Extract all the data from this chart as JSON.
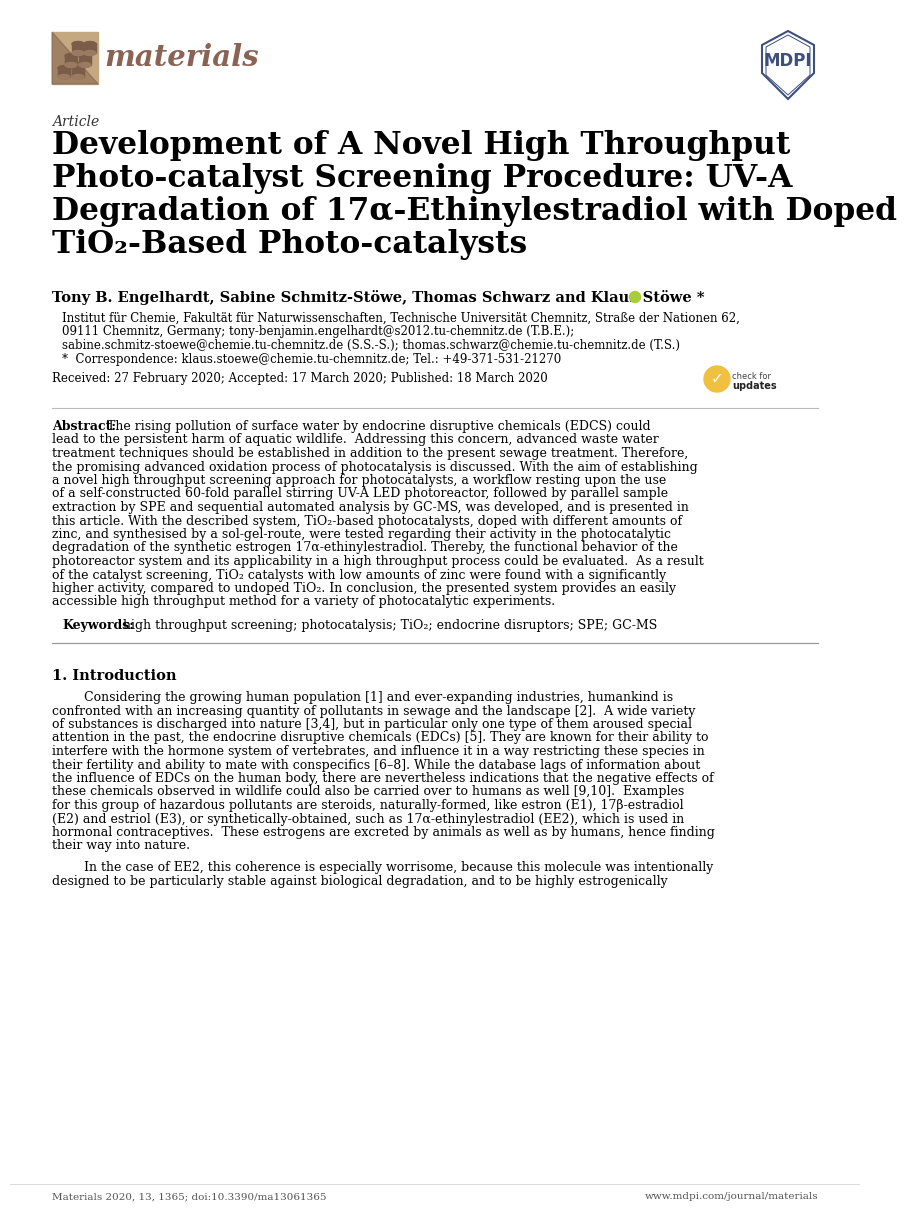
{
  "bg_color": "#ffffff",
  "article_label": "Article",
  "title_line1": "Development of A Novel High Throughput",
  "title_line2": "Photo-catalyst Screening Procedure: UV-A",
  "title_line3": "Degradation of 17α-Ethinylestradiol with Doped",
  "title_line4": "TiO₂-Based Photo-catalysts",
  "authors": "Tony B. Engelhardt, Sabine Schmitz-Stöwe, Thomas Schwarz and Klaus Stöwe *",
  "affil1": "Institut für Chemie, Fakultät für Naturwissenschaften, Technische Universität Chemnitz, Straße der Nationen 62,",
  "affil2": "09111 Chemnitz, Germany; tony-benjamin.engelhardt@s2012.tu-chemnitz.de (T.B.E.);",
  "affil3": "sabine.schmitz-stoewe@chemie.tu-chemnitz.de (S.S.-S.); thomas.schwarz@chemie.tu-chemnitz.de (T.S.)",
  "affil4": "*  Correspondence: klaus.stoewe@chemie.tu-chemnitz.de; Tel.: +49-371-531-21270",
  "dates": "Received: 27 February 2020; Accepted: 17 March 2020; Published: 18 March 2020",
  "abstract_bold": "Abstract:",
  "abstract_lines": [
    "Abstract: The rising pollution of surface water by endocrine disruptive chemicals (EDCS) could",
    "lead to the persistent harm of aquatic wildlife.  Addressing this concern, advanced waste water",
    "treatment techniques should be established in addition to the present sewage treatment. Therefore,",
    "the promising advanced oxidation process of photocatalysis is discussed. With the aim of establishing",
    "a novel high throughput screening approach for photocatalysts, a workflow resting upon the use",
    "of a self-constructed 60-fold parallel stirring UV-A LED photoreactor, followed by parallel sample",
    "extraction by SPE and sequential automated analysis by GC-MS, was developed, and is presented in",
    "this article. With the described system, TiO₂-based photocatalysts, doped with different amounts of",
    "zinc, and synthesised by a sol-gel-route, were tested regarding their activity in the photocatalytic",
    "degradation of the synthetic estrogen 17α-ethinylestradiol. Thereby, the functional behavior of the",
    "photoreactor system and its applicability in a high throughput process could be evaluated.  As a result",
    "of the catalyst screening, TiO₂ catalysts with low amounts of zinc were found with a significantly",
    "higher activity, compared to undoped TiO₂. In conclusion, the presented system provides an easily",
    "accessible high throughput method for a variety of photocatalytic experiments."
  ],
  "keywords_bold": "Keywords:",
  "keywords_text": " high throughput screening; photocatalysis; TiO₂; endocrine disruptors; SPE; GC-MS",
  "section1_title": "1. Introduction",
  "intro_lines1": [
    "        Considering the growing human population [1] and ever-expanding industries, humankind is",
    "confronted with an increasing quantity of pollutants in sewage and the landscape [2].  A wide variety",
    "of substances is discharged into nature [3,4], but in particular only one type of them aroused special",
    "attention in the past, the endocrine disruptive chemicals (EDCs) [5]. They are known for their ability to",
    "interfere with the hormone system of vertebrates, and influence it in a way restricting these species in",
    "their fertility and ability to mate with conspecifics [6–8]. While the database lags of information about",
    "the influence of EDCs on the human body, there are nevertheless indications that the negative effects of",
    "these chemicals observed in wildlife could also be carried over to humans as well [9,10].  Examples",
    "for this group of hazardous pollutants are steroids, naturally-formed, like estron (E1), 17β-estradiol",
    "(E2) and estriol (E3), or synthetically-obtained, such as 17α-ethinylestradiol (EE2), which is used in",
    "hormonal contraceptives.  These estrogens are excreted by animals as well as by humans, hence finding",
    "their way into nature."
  ],
  "intro_lines2": [
    "        In the case of EE2, this coherence is especially worrisome, because this molecule was intentionally",
    "designed to be particularly stable against biological degradation, and to be highly estrogenically"
  ],
  "footer_left": "Materials 2020, 13, 1365; doi:10.3390/ma13061365",
  "footer_right": "www.mdpi.com/journal/materials",
  "materials_color": "#8B6355",
  "mdpi_color": "#3D4F7C",
  "journal_name": "materials",
  "logo_bg": "#C4A882",
  "logo_dark": "#7B5C48"
}
